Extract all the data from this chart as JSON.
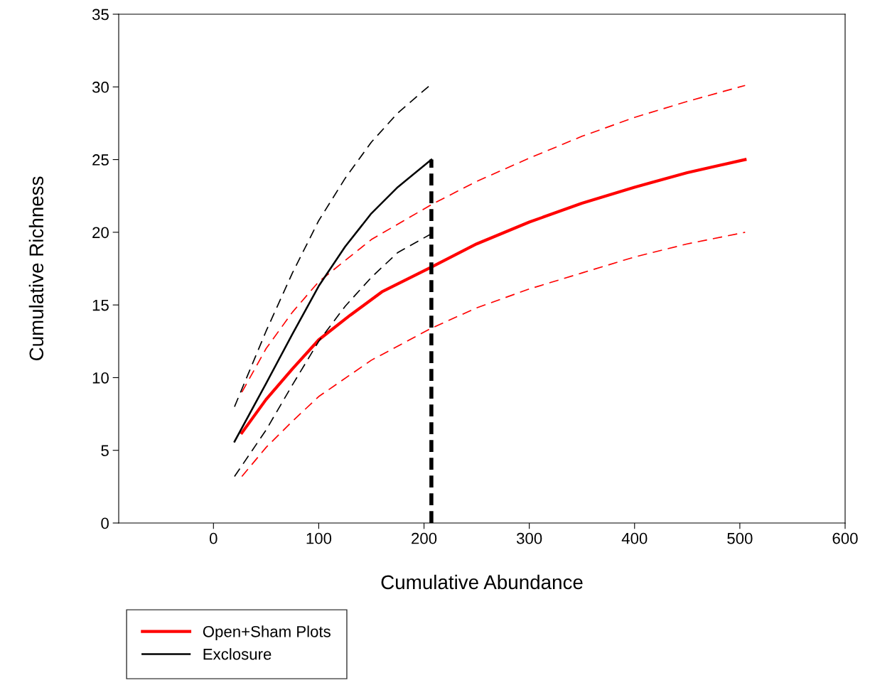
{
  "chart_data": {
    "type": "line",
    "xlabel": "Cumulative Abundance",
    "ylabel": "Cumulative Richness",
    "xlim": [
      -90,
      600
    ],
    "xticks": [
      0,
      100,
      200,
      300,
      400,
      500,
      600
    ],
    "ylim": [
      0,
      35
    ],
    "yticks": [
      0,
      5,
      10,
      15,
      20,
      25,
      30,
      35
    ],
    "grid": false,
    "legend": "bottom left",
    "marker": "none",
    "series": [
      {
        "name": "Open+Sham Plots",
        "color": "#ff0000",
        "line_style": "solid",
        "x": [
          27,
          50,
          75,
          100,
          130,
          160,
          207,
          250,
          300,
          350,
          400,
          450,
          505
        ],
        "values": [
          6.2,
          8.5,
          10.6,
          12.6,
          14.3,
          15.9,
          17.6,
          19.2,
          20.7,
          22.0,
          23.1,
          24.1,
          25.0
        ]
      },
      {
        "color": "#ff0000",
        "line_style": "dashed",
        "x": [
          27,
          50,
          75,
          100,
          150,
          207,
          250,
          300,
          350,
          400,
          450,
          505
        ],
        "values": [
          9.0,
          12.0,
          14.5,
          16.6,
          19.5,
          21.9,
          23.5,
          25.1,
          26.6,
          27.9,
          29.0,
          30.1
        ]
      },
      {
        "color": "#ff0000",
        "line_style": "dashed",
        "x": [
          27,
          50,
          75,
          100,
          150,
          207,
          250,
          300,
          350,
          400,
          450,
          505
        ],
        "values": [
          3.2,
          5.2,
          7.0,
          8.7,
          11.2,
          13.4,
          14.8,
          16.1,
          17.2,
          18.3,
          19.2,
          20.0
        ]
      },
      {
        "name": "Exclosure",
        "color": "#000000",
        "line_style": "solid",
        "x": [
          20,
          50,
          75,
          100,
          125,
          150,
          175,
          207
        ],
        "values": [
          5.6,
          9.6,
          13.0,
          16.3,
          19.0,
          21.3,
          23.1,
          25.0
        ]
      },
      {
        "color": "#000000",
        "line_style": "dashed",
        "x": [
          20,
          50,
          75,
          100,
          125,
          150,
          175,
          207
        ],
        "values": [
          8.0,
          13.2,
          17.2,
          20.8,
          23.7,
          26.2,
          28.2,
          30.2
        ]
      },
      {
        "color": "#000000",
        "line_style": "dashed",
        "x": [
          20,
          50,
          75,
          100,
          125,
          150,
          175,
          207
        ],
        "values": [
          3.2,
          6.4,
          9.5,
          12.5,
          14.9,
          16.9,
          18.6,
          19.9
        ]
      },
      {
        "color": "#000000",
        "line_style": "dashed",
        "x": [
          207,
          207
        ],
        "values": [
          0,
          25.0
        ]
      }
    ]
  }
}
